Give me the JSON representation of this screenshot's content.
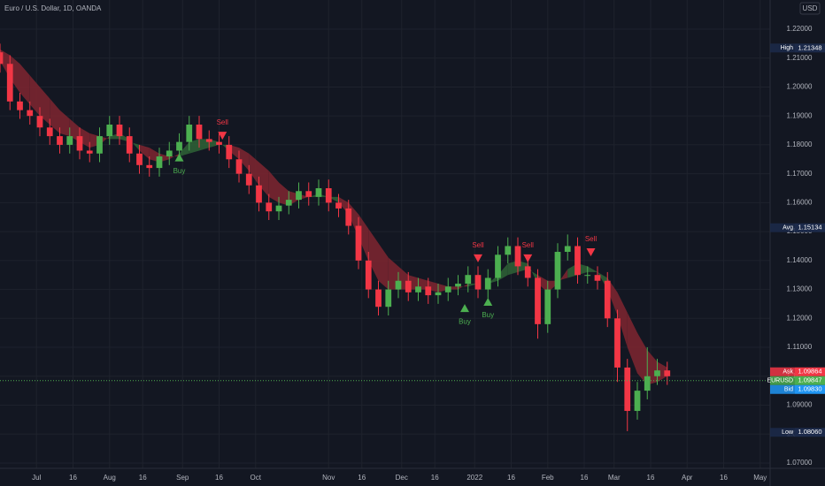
{
  "chart_data": {
    "type": "candlestick",
    "title": "Euro / U.S. Dollar, 1D, OANDA",
    "currency": "USD",
    "grid": true,
    "up_color": "#4caf50",
    "down_color": "#f23645",
    "ribbon_up_color": "#2e5e35",
    "ribbon_down_color": "#7a2530",
    "xlim": [
      0,
      232
    ],
    "ylim": [
      1.06815,
      1.23008
    ],
    "xticks": [
      {
        "value": 11,
        "label": "Jul"
      },
      {
        "value": 22,
        "label": "16"
      },
      {
        "value": 33,
        "label": "Aug"
      },
      {
        "value": 43,
        "label": "16"
      },
      {
        "value": 55,
        "label": "Sep"
      },
      {
        "value": 66,
        "label": "16"
      },
      {
        "value": 77,
        "label": "Oct"
      },
      {
        "value": 99,
        "label": "Nov"
      },
      {
        "value": 109,
        "label": "16"
      },
      {
        "value": 121,
        "label": "Dec"
      },
      {
        "value": 131,
        "label": "16"
      },
      {
        "value": 143,
        "label": "2022"
      },
      {
        "value": 154,
        "label": "16"
      },
      {
        "value": 165,
        "label": "Feb"
      },
      {
        "value": 176,
        "label": "16"
      },
      {
        "value": 185,
        "label": "Mar"
      },
      {
        "value": 196,
        "label": "16"
      },
      {
        "value": 207,
        "label": "Apr"
      },
      {
        "value": 218,
        "label": "16"
      },
      {
        "value": 229,
        "label": "May"
      }
    ],
    "yticks": [
      {
        "value": 1.07,
        "label": "1.07000"
      },
      {
        "value": 1.08,
        "label": "1.08000"
      },
      {
        "value": 1.09,
        "label": "1.09000"
      },
      {
        "value": 1.1,
        "label": "1.10000"
      },
      {
        "value": 1.11,
        "label": "1.11000"
      },
      {
        "value": 1.12,
        "label": "1.12000"
      },
      {
        "value": 1.13,
        "label": "1.13000"
      },
      {
        "value": 1.14,
        "label": "1.14000"
      },
      {
        "value": 1.15,
        "label": "1.15000"
      },
      {
        "value": 1.16,
        "label": "1.16000"
      },
      {
        "value": 1.17,
        "label": "1.17000"
      },
      {
        "value": 1.18,
        "label": "1.18000"
      },
      {
        "value": 1.19,
        "label": "1.19000"
      },
      {
        "value": 1.2,
        "label": "1.20000"
      },
      {
        "value": 1.21,
        "label": "1.21000"
      },
      {
        "value": 1.22,
        "label": "1.22000"
      }
    ],
    "x": [
      0,
      3,
      6,
      9,
      12,
      15,
      18,
      21,
      24,
      27,
      30,
      33,
      36,
      39,
      42,
      45,
      48,
      51,
      54,
      57,
      60,
      63,
      66,
      69,
      72,
      75,
      78,
      81,
      84,
      87,
      90,
      93,
      96,
      99,
      102,
      105,
      108,
      111,
      114,
      117,
      120,
      123,
      126,
      129,
      132,
      135,
      138,
      141,
      144,
      147,
      150,
      153,
      156,
      159,
      162,
      165,
      168,
      171,
      174,
      177,
      180,
      183,
      186,
      189,
      192,
      195,
      198,
      201
    ],
    "open": [
      1.212,
      1.208,
      1.195,
      1.192,
      1.19,
      1.186,
      1.183,
      1.18,
      1.183,
      1.178,
      1.177,
      1.183,
      1.187,
      1.183,
      1.177,
      1.173,
      1.172,
      1.176,
      1.178,
      1.181,
      1.187,
      1.182,
      1.181,
      1.18,
      1.175,
      1.17,
      1.166,
      1.16,
      1.157,
      1.159,
      1.161,
      1.164,
      1.162,
      1.165,
      1.16,
      1.158,
      1.152,
      1.14,
      1.13,
      1.124,
      1.13,
      1.133,
      1.129,
      1.131,
      1.128,
      1.129,
      1.131,
      1.132,
      1.135,
      1.13,
      1.134,
      1.142,
      1.145,
      1.138,
      1.134,
      1.118,
      1.13,
      1.143,
      1.145,
      1.135,
      1.135,
      1.133,
      1.12,
      1.103,
      1.088,
      1.095,
      1.1,
      1.102
    ],
    "high": [
      1.215,
      1.211,
      1.198,
      1.195,
      1.193,
      1.189,
      1.186,
      1.186,
      1.186,
      1.181,
      1.186,
      1.19,
      1.19,
      1.186,
      1.18,
      1.176,
      1.179,
      1.181,
      1.184,
      1.19,
      1.19,
      1.185,
      1.184,
      1.183,
      1.178,
      1.173,
      1.169,
      1.163,
      1.162,
      1.164,
      1.167,
      1.167,
      1.168,
      1.168,
      1.163,
      1.161,
      1.155,
      1.143,
      1.133,
      1.133,
      1.136,
      1.136,
      1.134,
      1.134,
      1.132,
      1.134,
      1.135,
      1.138,
      1.138,
      1.137,
      1.145,
      1.148,
      1.148,
      1.141,
      1.137,
      1.133,
      1.146,
      1.149,
      1.148,
      1.138,
      1.138,
      1.136,
      1.123,
      1.106,
      1.098,
      1.11,
      1.106,
      1.105
    ],
    "low": [
      1.205,
      1.192,
      1.189,
      1.187,
      1.183,
      1.18,
      1.177,
      1.177,
      1.175,
      1.174,
      1.174,
      1.18,
      1.18,
      1.174,
      1.17,
      1.169,
      1.169,
      1.173,
      1.175,
      1.178,
      1.179,
      1.178,
      1.177,
      1.172,
      1.167,
      1.163,
      1.157,
      1.154,
      1.154,
      1.156,
      1.158,
      1.159,
      1.159,
      1.157,
      1.155,
      1.149,
      1.137,
      1.127,
      1.121,
      1.121,
      1.127,
      1.126,
      1.126,
      1.125,
      1.125,
      1.126,
      1.128,
      1.129,
      1.127,
      1.127,
      1.131,
      1.139,
      1.135,
      1.131,
      1.113,
      1.115,
      1.127,
      1.14,
      1.132,
      1.132,
      1.13,
      1.117,
      1.098,
      1.081,
      1.085,
      1.092,
      1.097,
      1.097
    ],
    "close": [
      1.208,
      1.195,
      1.192,
      1.19,
      1.186,
      1.183,
      1.18,
      1.183,
      1.178,
      1.177,
      1.183,
      1.187,
      1.183,
      1.177,
      1.173,
      1.172,
      1.176,
      1.178,
      1.181,
      1.187,
      1.182,
      1.181,
      1.18,
      1.175,
      1.17,
      1.166,
      1.16,
      1.157,
      1.159,
      1.161,
      1.164,
      1.162,
      1.165,
      1.16,
      1.158,
      1.152,
      1.14,
      1.13,
      1.124,
      1.13,
      1.133,
      1.129,
      1.131,
      1.128,
      1.129,
      1.131,
      1.132,
      1.135,
      1.13,
      1.134,
      1.142,
      1.145,
      1.138,
      1.134,
      1.118,
      1.13,
      1.143,
      1.145,
      1.135,
      1.135,
      1.133,
      1.12,
      1.103,
      1.088,
      1.095,
      1.1,
      1.102,
      1.1
    ],
    "fast": [
      1.209,
      1.203,
      1.198,
      1.194,
      1.19,
      1.187,
      1.184,
      1.183,
      1.181,
      1.179,
      1.18,
      1.183,
      1.184,
      1.182,
      1.178,
      1.175,
      1.174,
      1.175,
      1.177,
      1.181,
      1.182,
      1.182,
      1.181,
      1.178,
      1.175,
      1.171,
      1.166,
      1.162,
      1.16,
      1.159,
      1.161,
      1.162,
      1.163,
      1.162,
      1.16,
      1.156,
      1.148,
      1.14,
      1.133,
      1.13,
      1.13,
      1.13,
      1.13,
      1.13,
      1.129,
      1.13,
      1.13,
      1.132,
      1.132,
      1.132,
      1.135,
      1.139,
      1.14,
      1.139,
      1.132,
      1.129,
      1.132,
      1.137,
      1.139,
      1.138,
      1.136,
      1.13,
      1.121,
      1.11,
      1.101,
      1.097,
      1.098,
      1.1
    ],
    "slow": [
      1.213,
      1.211,
      1.208,
      1.204,
      1.2,
      1.196,
      1.192,
      1.189,
      1.186,
      1.184,
      1.183,
      1.182,
      1.182,
      1.181,
      1.18,
      1.179,
      1.177,
      1.176,
      1.176,
      1.177,
      1.178,
      1.179,
      1.18,
      1.18,
      1.179,
      1.177,
      1.174,
      1.171,
      1.167,
      1.164,
      1.163,
      1.162,
      1.162,
      1.162,
      1.162,
      1.16,
      1.156,
      1.151,
      1.146,
      1.141,
      1.138,
      1.135,
      1.134,
      1.133,
      1.132,
      1.131,
      1.131,
      1.131,
      1.132,
      1.132,
      1.133,
      1.135,
      1.136,
      1.137,
      1.135,
      1.133,
      1.133,
      1.134,
      1.135,
      1.136,
      1.136,
      1.134,
      1.129,
      1.122,
      1.115,
      1.109,
      1.105,
      1.103
    ],
    "signals": [
      {
        "label": "Buy",
        "x": 54,
        "value": 1.1755,
        "direction": "up",
        "color": "#4caf50"
      },
      {
        "label": "Sell",
        "x": 67,
        "value": 1.1833,
        "direction": "down",
        "color": "#f23645"
      },
      {
        "label": "Buy",
        "x": 140,
        "value": 1.1234,
        "direction": "up",
        "color": "#4caf50"
      },
      {
        "label": "Sell",
        "x": 144,
        "value": 1.1409,
        "direction": "down",
        "color": "#f23645"
      },
      {
        "label": "Buy",
        "x": 147,
        "value": 1.1256,
        "direction": "up",
        "color": "#4caf50"
      },
      {
        "label": "Sell",
        "x": 159,
        "value": 1.1409,
        "direction": "down",
        "color": "#f23645"
      },
      {
        "label": "Sell",
        "x": 178,
        "value": 1.143,
        "direction": "down",
        "color": "#f23645"
      }
    ],
    "price_labels": [
      {
        "name": "High",
        "value": 1.21348,
        "value_label": "1.21348",
        "color": "#1c2a4a"
      },
      {
        "name": "Avg",
        "value": 1.15134,
        "value_label": "1.15134",
        "color": "#1c2a4a"
      },
      {
        "name": "Ask",
        "value": 1.09864,
        "value_label": "1.09864",
        "color": "#f23645"
      },
      {
        "name": "EURUSD",
        "value": 1.09847,
        "value_label": "1.09847",
        "color": "#4caf50"
      },
      {
        "name": "Bid",
        "value": 1.0983,
        "value_label": "1.09830",
        "color": "#2196f3"
      },
      {
        "name": "Low",
        "value": 1.0806,
        "value_label": "1.08060",
        "color": "#1c2a4a"
      }
    ],
    "current_price_index": 3
  }
}
